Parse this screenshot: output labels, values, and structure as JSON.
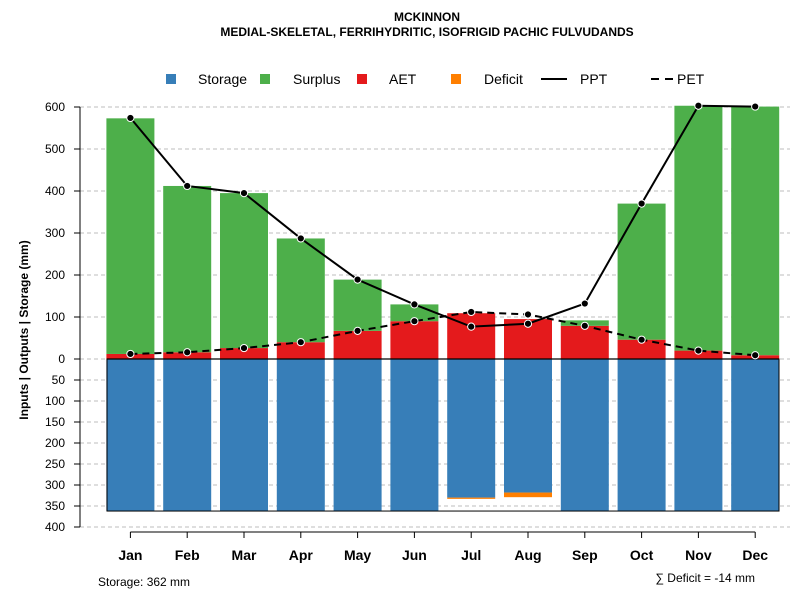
{
  "chart_data": {
    "type": "bar",
    "title": "MCKINNON",
    "subtitle": "MEDIAL-SKELETAL, FERRIHYDRITIC, ISOFRIGID PACHIC FULVUDANDS",
    "ylabel": "Inputs | Outputs | Storage    (mm)",
    "ylim": [
      -400,
      620
    ],
    "yticks": [
      600,
      500,
      400,
      300,
      200,
      100,
      0,
      -50,
      -100,
      -150,
      -200,
      -250,
      -300,
      -350,
      -400
    ],
    "ytick_labels": [
      "600",
      "500",
      "400",
      "300",
      "200",
      "100",
      "0",
      "50",
      "100",
      "150",
      "200",
      "250",
      "300",
      "350",
      "400"
    ],
    "grid": true,
    "categories": [
      "Jan",
      "Feb",
      "Mar",
      "Apr",
      "May",
      "Jun",
      "Jul",
      "Aug",
      "Sep",
      "Oct",
      "Nov",
      "Dec"
    ],
    "legend": [
      {
        "label": "Storage",
        "kind": "square",
        "color": "#377EB8"
      },
      {
        "label": "Surplus",
        "kind": "square",
        "color": "#4DAF4A"
      },
      {
        "label": "AET",
        "kind": "square",
        "color": "#E41A1C"
      },
      {
        "label": "Deficit",
        "kind": "square",
        "color": "#FF7F00"
      },
      {
        "label": "PPT",
        "kind": "solid"
      },
      {
        "label": "PET",
        "kind": "dashed"
      }
    ],
    "series": [
      {
        "name": "Storage",
        "color": "#377EB8",
        "values": [
          362,
          362,
          362,
          362,
          362,
          362,
          330,
          318,
          362,
          362,
          362,
          362
        ]
      },
      {
        "name": "Surplus",
        "color": "#4DAF4A",
        "values": [
          561,
          396,
          369,
          247,
          122,
          40,
          0,
          0,
          13,
          324,
          583,
          592
        ]
      },
      {
        "name": "AET",
        "color": "#E41A1C",
        "values": [
          12,
          16,
          26,
          40,
          67,
          90,
          109,
          95,
          79,
          46,
          20,
          9
        ]
      },
      {
        "name": "Deficit",
        "color": "#FF7F00",
        "values": [
          0,
          0,
          0,
          0,
          0,
          0,
          3,
          11,
          0,
          0,
          0,
          0
        ]
      },
      {
        "name": "PPT",
        "values": [
          574,
          412,
          395,
          287,
          189,
          130,
          77,
          84,
          132,
          370,
          603,
          601
        ]
      },
      {
        "name": "PET",
        "values": [
          12,
          16,
          26,
          40,
          67,
          90,
          112,
          106,
          79,
          46,
          20,
          9
        ]
      }
    ],
    "annotations": {
      "storage": "Storage: 362 mm",
      "deficit": "∑ Deficit = -14 mm"
    }
  }
}
